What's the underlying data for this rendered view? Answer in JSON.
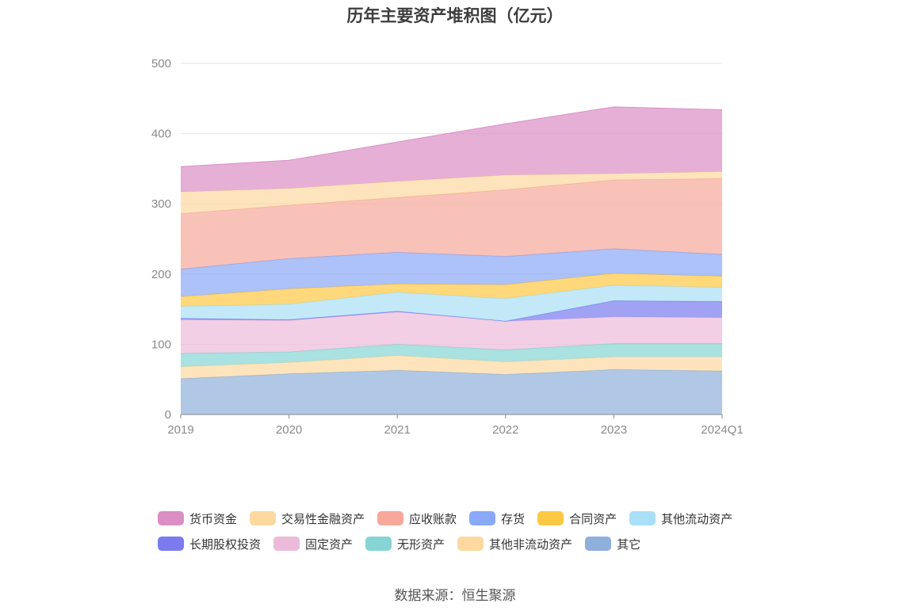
{
  "chart_data": {
    "type": "area",
    "stacked": true,
    "title": "历年主要资产堆积图（亿元）",
    "x": [
      "2019",
      "2020",
      "2021",
      "2022",
      "2023",
      "2024Q1"
    ],
    "y_ticks": [
      "0",
      "100",
      "200",
      "300",
      "400",
      "500"
    ],
    "ylim": [
      0,
      500
    ],
    "grid": true,
    "legend_position": "bottom",
    "series": [
      {
        "name": "其它",
        "color": "#8fb0dc",
        "values": [
          51,
          58,
          63,
          57,
          64,
          62
        ]
      },
      {
        "name": "其他非流动资产",
        "color": "#fdd9a0",
        "values": [
          17,
          16,
          21,
          18,
          18,
          20
        ]
      },
      {
        "name": "无形资产",
        "color": "#86d4d4",
        "values": [
          19,
          15,
          16,
          17,
          19,
          19
        ]
      },
      {
        "name": "固定资产",
        "color": "#ecbbd9",
        "values": [
          48,
          45,
          46,
          41,
          38,
          37
        ]
      },
      {
        "name": "长期股权投资",
        "color": "#7b7bef",
        "values": [
          2,
          1,
          1,
          0,
          23,
          23
        ]
      },
      {
        "name": "其他流动资产",
        "color": "#a9dff7",
        "values": [
          17,
          22,
          27,
          32,
          22,
          20
        ]
      },
      {
        "name": "合同资产",
        "color": "#fdc843",
        "values": [
          14,
          22,
          12,
          20,
          17,
          16
        ]
      },
      {
        "name": "存货",
        "color": "#89a8f7",
        "values": [
          39,
          43,
          45,
          40,
          35,
          31
        ]
      },
      {
        "name": "应收账款",
        "color": "#f7a89b",
        "values": [
          79,
          76,
          78,
          95,
          98,
          108
        ]
      },
      {
        "name": "交易性金融资产",
        "color": "#fdd9a0",
        "values": [
          31,
          24,
          23,
          21,
          9,
          10
        ]
      },
      {
        "name": "货币资金",
        "color": "#db8ec4",
        "values": [
          36,
          40,
          56,
          73,
          95,
          88
        ]
      }
    ],
    "legend_order": [
      "货币资金",
      "交易性金融资产",
      "应收账款",
      "存货",
      "合同资产",
      "其他流动资产",
      "长期股权投资",
      "固定资产",
      "无形资产",
      "其他非流动资产",
      "其它"
    ],
    "source": "数据来源：恒生聚源"
  }
}
